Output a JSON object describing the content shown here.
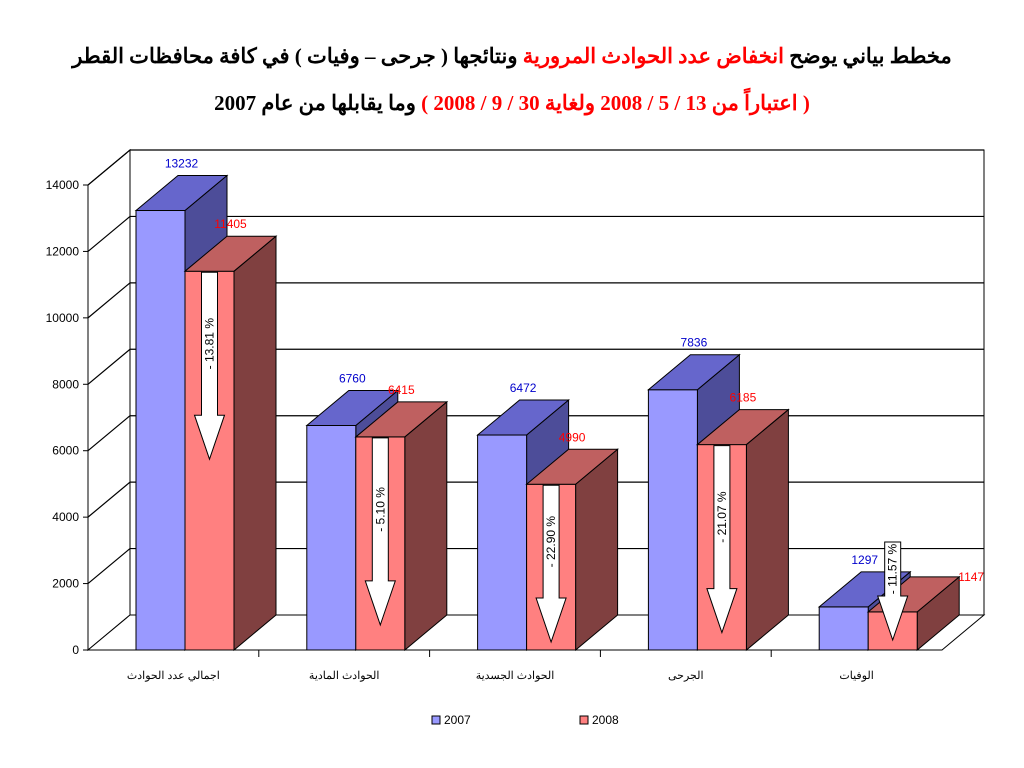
{
  "title": {
    "line1": {
      "part1": "مخطط بياني يوضح",
      "part2": "انخفاض عدد الحوادث المرورية",
      "part3": "ونتائجها ( جرحى – وفيات ) في كافة محافظات القطر"
    },
    "line2": {
      "part1": "( اعتباراً من 13 / 5 / 2008 ولغاية 30 / 9 / 2008 )",
      "part2": "وما يقابلها من عام 2007"
    }
  },
  "colors": {
    "series_2007_front": "#9999ff",
    "series_2007_top": "#6666cc",
    "series_2007_side": "#4d4d99",
    "series_2008_front": "#ff8080",
    "series_2008_top": "#bf6060",
    "series_2008_side": "#804040",
    "label_2007": "#0000cc",
    "label_2008": "#ff0000"
  },
  "chart_data": {
    "type": "bar",
    "categories": [
      "اجمالي عدد الحوادث",
      "الحوادث المادية",
      "الحوادث الجسدية",
      "الجرحى",
      "الوفيات"
    ],
    "series": [
      {
        "name": "2007",
        "values": [
          13232,
          6760,
          6472,
          7836,
          1297
        ]
      },
      {
        "name": "2008",
        "values": [
          11405,
          6415,
          4990,
          6185,
          1147
        ]
      }
    ],
    "change_labels": [
      "- 13.81 %",
      "- 5.10 %",
      "- 22.90 %",
      "- 21.07 %",
      "- 11.57 %"
    ],
    "yticks": [
      0,
      2000,
      4000,
      6000,
      8000,
      10000,
      12000,
      14000
    ],
    "ylim": [
      0,
      14000
    ],
    "grid": true,
    "legend": "bottom",
    "three_d": true
  }
}
